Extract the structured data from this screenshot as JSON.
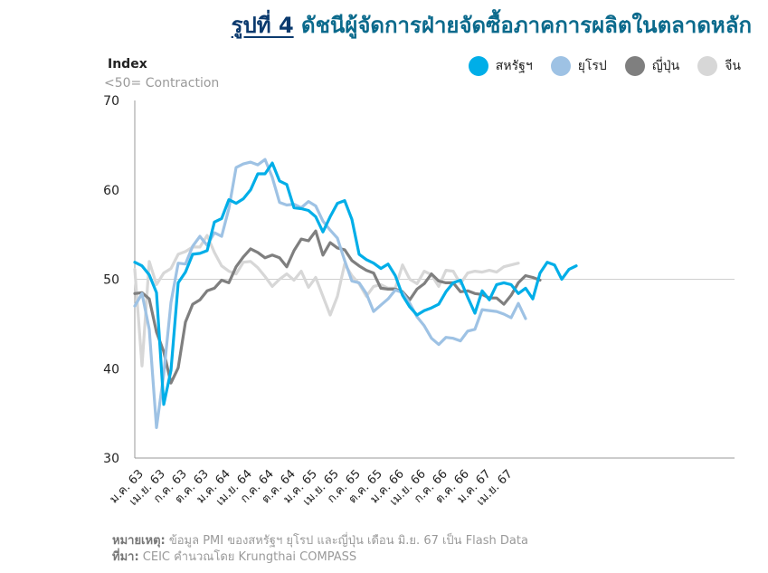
{
  "header": {
    "fig_label": "รูปที่ 4",
    "title": "ดัชนีผู้จัดการฝ่ายจัดซื้อภาคการผลิตในตลาดหลัก"
  },
  "chart_data": {
    "type": "line",
    "ylabel": "Index",
    "ylabel_note": "<50= Contraction",
    "ylim": [
      30,
      70
    ],
    "yticks": [
      30,
      40,
      50,
      60,
      70
    ],
    "reference_line": 50,
    "legend_position": "top-right",
    "xtick_labels": [
      "ม.ค. 63",
      "เม.ย. 63",
      "ก.ค. 63",
      "ต.ค. 63",
      "ม.ค. 64",
      "เม.ย. 64",
      "ก.ค. 64",
      "ต.ค. 64",
      "ม.ค. 65",
      "เม.ย. 65",
      "ก.ค. 65",
      "ต.ค. 65",
      "ม.ค. 66",
      "เม.ย. 66",
      "ก.ค. 66",
      "ต.ค. 66",
      "ม.ค. 67",
      "เม.ย. 67"
    ],
    "series": [
      {
        "name": "สหรัฐฯ",
        "color": "#00aee8",
        "width": 3.2,
        "values": [
          51.9,
          51.5,
          50.5,
          48.5,
          36.0,
          39.8,
          49.6,
          50.8,
          52.8,
          52.9,
          53.2,
          56.4,
          56.8,
          58.9,
          58.5,
          59.0,
          60.0,
          61.8,
          61.8,
          63.0,
          61.0,
          60.6,
          58.0,
          57.9,
          57.7,
          57.0,
          55.3,
          57.0,
          58.5,
          58.8,
          56.7,
          52.8,
          52.2,
          51.8,
          51.2,
          51.7,
          50.4,
          48.2,
          46.9,
          46.0,
          46.5,
          46.8,
          47.2,
          48.6,
          49.6,
          49.9,
          48.0,
          46.2,
          48.7,
          47.7,
          49.4,
          49.6,
          49.4,
          48.4,
          49.0,
          47.8,
          50.7,
          51.9,
          51.6,
          50.0,
          51.1,
          51.5
        ]
      },
      {
        "name": "ยุโรป",
        "color": "#9ec2e4",
        "width": 3.2,
        "values": [
          47.0,
          48.4,
          44.4,
          33.4,
          39.4,
          47.4,
          51.8,
          51.7,
          53.7,
          54.8,
          53.8,
          55.2,
          54.8,
          57.9,
          62.5,
          62.9,
          63.1,
          62.8,
          63.4,
          61.4,
          58.6,
          58.3,
          58.4,
          58.0,
          58.7,
          58.2,
          56.5,
          55.5,
          54.6,
          52.1,
          49.8,
          49.6,
          48.4,
          46.4,
          47.1,
          47.8,
          48.8,
          48.5,
          47.3,
          45.8,
          44.8,
          43.4,
          42.7,
          43.5,
          43.4,
          43.1,
          44.2,
          44.4,
          46.6,
          46.5,
          46.4,
          46.1,
          45.7,
          47.3,
          45.6
        ]
      },
      {
        "name": "ญี่ปุ่น",
        "color": "#7f7f7f",
        "width": 3.2,
        "values": [
          48.4,
          48.5,
          47.8,
          44.1,
          41.9,
          38.4,
          40.1,
          45.2,
          47.2,
          47.7,
          48.7,
          49.0,
          49.9,
          49.6,
          51.4,
          52.5,
          53.4,
          53.0,
          52.4,
          52.7,
          52.4,
          51.4,
          53.2,
          54.5,
          54.3,
          55.4,
          52.7,
          54.1,
          53.5,
          53.3,
          52.1,
          51.5,
          51.0,
          50.7,
          49.0,
          48.9,
          48.9,
          48.6,
          47.7,
          48.9,
          49.5,
          50.6,
          49.8,
          49.6,
          49.6,
          48.6,
          48.7,
          48.4,
          48.3,
          47.9,
          47.9,
          47.2,
          48.2,
          49.6,
          50.4,
          50.2,
          49.9
        ]
      },
      {
        "name": "จีน",
        "color": "#d7d7d7",
        "width": 3.2,
        "values": [
          51.1,
          40.3,
          52.0,
          49.4,
          50.7,
          51.2,
          52.8,
          53.1,
          53.6,
          53.6,
          54.9,
          53.0,
          51.5,
          50.9,
          50.6,
          51.9,
          52.0,
          51.3,
          50.3,
          49.2,
          50.0,
          50.6,
          49.9,
          50.9,
          49.1,
          50.2,
          48.1,
          46.0,
          48.1,
          51.7,
          50.4,
          49.5,
          48.1,
          49.2,
          49.4,
          49.0,
          49.0,
          51.6,
          50.0,
          49.5,
          50.9,
          50.5,
          49.2,
          51.0,
          50.9,
          49.5,
          50.7,
          50.9,
          50.8,
          51.0,
          50.8,
          51.4,
          51.6,
          51.8
        ]
      }
    ]
  },
  "footnotes": {
    "note_label": "หมายเหตุ:",
    "note_text": "ข้อมูล PMI ของสหรัฐฯ ยุโรป และญี่ปุ่น เดือน มิ.ย. 67 เป็น Flash Data",
    "source_label": "ที่มา:",
    "source_text": "CEIC คำนวณโดย Krungthai COMPASS"
  }
}
